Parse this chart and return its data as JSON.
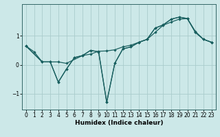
{
  "xlabel": "Humidex (Indice chaleur)",
  "xlim": [
    -0.5,
    23.5
  ],
  "ylim": [
    -1.55,
    2.1
  ],
  "yticks": [
    -1,
    0,
    1
  ],
  "xticks": [
    0,
    1,
    2,
    3,
    4,
    5,
    6,
    7,
    8,
    9,
    10,
    11,
    12,
    13,
    14,
    15,
    16,
    17,
    18,
    19,
    20,
    21,
    22,
    23
  ],
  "bg_color": "#cce8e8",
  "grid_color": "#aacccc",
  "line_color": "#1a6060",
  "line1_x": [
    0,
    2,
    3,
    4,
    5,
    7,
    8,
    9,
    10,
    11,
    12,
    13,
    14,
    15,
    16,
    17,
    18,
    19,
    20,
    21,
    22,
    23
  ],
  "line1_y": [
    0.65,
    0.1,
    0.1,
    0.1,
    0.05,
    0.32,
    0.37,
    0.47,
    0.48,
    0.52,
    0.62,
    0.68,
    0.78,
    0.88,
    1.12,
    1.37,
    1.48,
    1.58,
    1.6,
    1.15,
    0.88,
    0.78
  ],
  "line2_x": [
    0,
    1,
    2,
    3,
    4,
    5,
    6,
    7,
    8,
    9,
    10,
    11,
    12,
    13,
    14,
    15,
    16,
    17,
    18,
    19,
    20,
    21,
    22,
    23
  ],
  "line2_y": [
    0.65,
    0.45,
    0.1,
    0.1,
    -0.6,
    -0.15,
    0.25,
    0.32,
    0.5,
    0.45,
    -1.3,
    0.05,
    0.55,
    0.62,
    0.78,
    0.88,
    1.27,
    1.38,
    1.58,
    1.65,
    1.6,
    1.12,
    0.88,
    0.78
  ],
  "line3_x": [
    0,
    2,
    3,
    4,
    5,
    6,
    7,
    8,
    9,
    10,
    11,
    12,
    13,
    14,
    15,
    16,
    17,
    18,
    19,
    20,
    21,
    22,
    23
  ],
  "line3_y": [
    0.65,
    0.1,
    0.1,
    -0.6,
    -0.15,
    0.25,
    0.32,
    0.5,
    0.45,
    -1.3,
    0.05,
    0.55,
    0.62,
    0.78,
    0.88,
    1.27,
    1.38,
    1.58,
    1.65,
    1.6,
    1.12,
    0.88,
    0.78
  ]
}
